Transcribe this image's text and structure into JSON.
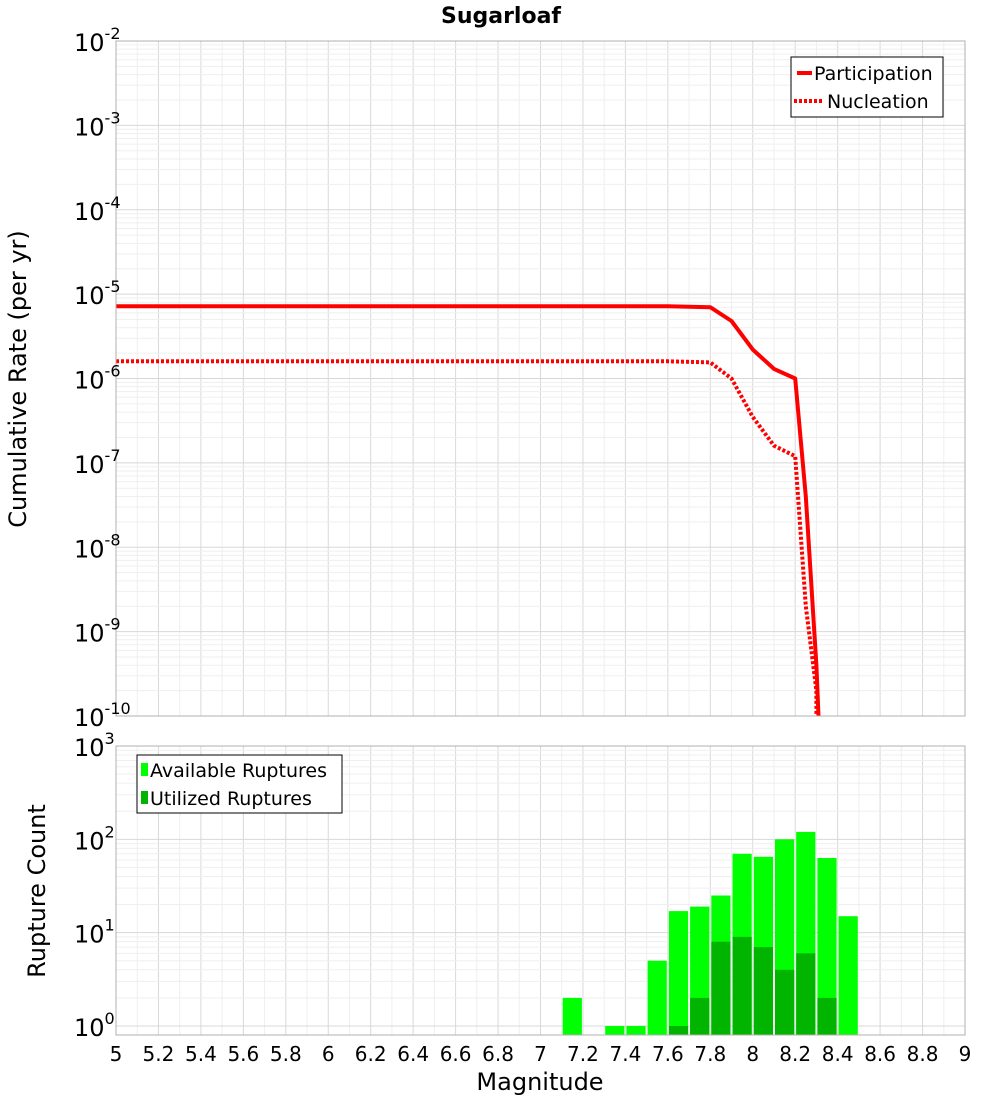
{
  "chart_data": [
    {
      "type": "line",
      "title": "Sugarloaf",
      "xlabel": "Magnitude",
      "ylabel": "Cumulative Rate (per yr)",
      "xlim": [
        5,
        9
      ],
      "ylim": [
        1e-10,
        0.01
      ],
      "yscale": "log",
      "grid": true,
      "legend_position": "top-right",
      "y_decades": [
        {
          "base": "10",
          "exp": "-2",
          "value": 0.01
        },
        {
          "base": "10",
          "exp": "-3",
          "value": 0.001
        },
        {
          "base": "10",
          "exp": "-4",
          "value": 0.0001
        },
        {
          "base": "10",
          "exp": "-5",
          "value": 1e-05
        },
        {
          "base": "10",
          "exp": "-6",
          "value": 1e-06
        },
        {
          "base": "10",
          "exp": "-7",
          "value": 1e-07
        },
        {
          "base": "10",
          "exp": "-8",
          "value": 1e-08
        },
        {
          "base": "10",
          "exp": "-9",
          "value": 1e-09
        },
        {
          "base": "10",
          "exp": "-10",
          "value": 1e-10
        }
      ],
      "series": [
        {
          "name": "Participation",
          "color": "#ff0000",
          "style": "solid",
          "x": [
            5.0,
            7.6,
            7.8,
            7.9,
            8.0,
            8.1,
            8.2,
            8.25,
            8.3,
            8.31
          ],
          "y": [
            7.2e-06,
            7.2e-06,
            7e-06,
            4.8e-06,
            2.2e-06,
            1.3e-06,
            1e-06,
            4e-08,
            4e-10,
            1e-10
          ]
        },
        {
          "name": "Nucleation",
          "color": "#ff0000",
          "style": "dotted",
          "x": [
            5.0,
            7.6,
            7.8,
            7.9,
            8.0,
            8.1,
            8.2,
            8.25,
            8.3,
            8.3
          ],
          "y": [
            1.6e-06,
            1.6e-06,
            1.55e-06,
            1e-06,
            3.5e-07,
            1.6e-07,
            1.2e-07,
            2e-09,
            2e-10,
            1e-10
          ]
        }
      ]
    },
    {
      "type": "bar",
      "xlabel": "Magnitude",
      "ylabel": "Rupture Count",
      "xlim": [
        5,
        9
      ],
      "ylim": [
        0.8,
        1000
      ],
      "yscale": "log",
      "grid": true,
      "legend_position": "top-left",
      "x_ticks": [
        "5",
        "5.2",
        "5.4",
        "5.6",
        "5.8",
        "6",
        "6.2",
        "6.4",
        "6.6",
        "6.8",
        "7",
        "7.2",
        "7.4",
        "7.6",
        "7.8",
        "8",
        "8.2",
        "8.4",
        "8.6",
        "8.8",
        "9"
      ],
      "y_decades": [
        {
          "base": "10",
          "exp": "3",
          "value": 1000
        },
        {
          "base": "10",
          "exp": "2",
          "value": 100
        },
        {
          "base": "10",
          "exp": "1",
          "value": 10
        },
        {
          "base": "10",
          "exp": "0",
          "value": 1
        }
      ],
      "categories": [
        7.15,
        7.35,
        7.45,
        7.55,
        7.65,
        7.75,
        7.85,
        7.95,
        8.05,
        8.15,
        8.25,
        8.35,
        8.45
      ],
      "series": [
        {
          "name": "Available Ruptures",
          "color": "#00ff00",
          "values": [
            2,
            1,
            1,
            5,
            17,
            19,
            25,
            70,
            65,
            100,
            120,
            63,
            15
          ]
        },
        {
          "name": "Utilized Ruptures",
          "color": "#00b400",
          "values": [
            0,
            0,
            0,
            0,
            1,
            2,
            8,
            9,
            7,
            4,
            6,
            2,
            0
          ]
        }
      ]
    }
  ]
}
